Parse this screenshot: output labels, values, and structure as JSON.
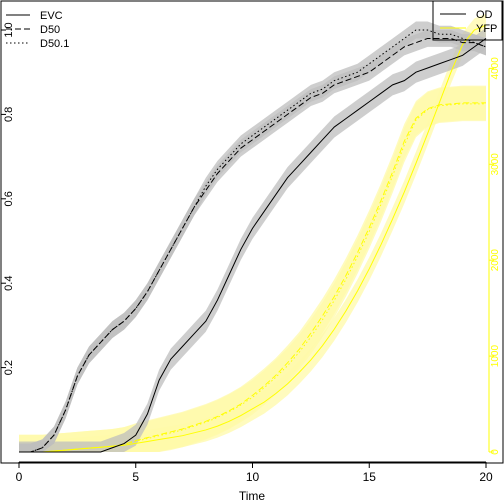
{
  "chart_data": {
    "type": "line",
    "title": "",
    "xlabel": "Time",
    "ylabel": "",
    "y2label": "",
    "xlim": [
      0,
      20
    ],
    "ylim": [
      0,
      1.0
    ],
    "y2lim": [
      0,
      4400
    ],
    "x_ticks": [
      0,
      5,
      10,
      15,
      20
    ],
    "y_ticks": [
      0.2,
      0.4,
      0.6,
      0.8,
      1.0
    ],
    "y2_ticks": [
      0,
      1000,
      2000,
      3000,
      4000
    ],
    "x": [
      0,
      0.5,
      1,
      1.5,
      2,
      2.5,
      3,
      3.5,
      4,
      4.5,
      5,
      5.5,
      6,
      6.5,
      7,
      7.5,
      8,
      8.5,
      9,
      9.5,
      10,
      10.5,
      11,
      11.5,
      12,
      12.5,
      13,
      13.5,
      14,
      14.5,
      15,
      15.5,
      16,
      16.5,
      17,
      17.5,
      18,
      18.5,
      19,
      19.5,
      20
    ],
    "od_series": [
      {
        "name": "EVC",
        "linetype": "solid",
        "axis": "left",
        "values": [
          0.0,
          0.0,
          0.0,
          0.0,
          0.0,
          0.0,
          0.0,
          0.0,
          0.01,
          0.02,
          0.04,
          0.09,
          0.17,
          0.22,
          0.25,
          0.28,
          0.31,
          0.36,
          0.42,
          0.48,
          0.53,
          0.57,
          0.61,
          0.65,
          0.68,
          0.71,
          0.74,
          0.77,
          0.79,
          0.81,
          0.83,
          0.85,
          0.87,
          0.88,
          0.9,
          0.91,
          0.92,
          0.93,
          0.94,
          0.96,
          0.98
        ],
        "band": 0.025
      },
      {
        "name": "D50",
        "linetype": "dashed",
        "axis": "left",
        "values": [
          0.0,
          0.0,
          0.01,
          0.04,
          0.1,
          0.18,
          0.23,
          0.26,
          0.29,
          0.31,
          0.34,
          0.38,
          0.43,
          0.48,
          0.53,
          0.58,
          0.62,
          0.66,
          0.69,
          0.72,
          0.74,
          0.76,
          0.78,
          0.8,
          0.82,
          0.84,
          0.85,
          0.87,
          0.88,
          0.89,
          0.9,
          0.92,
          0.94,
          0.96,
          0.97,
          0.98,
          0.98,
          0.98,
          0.97,
          0.97,
          0.96
        ],
        "band": 0.02
      },
      {
        "name": "D50.1",
        "linetype": "dotted",
        "axis": "left",
        "values": [
          0.0,
          0.0,
          0.01,
          0.04,
          0.1,
          0.18,
          0.23,
          0.26,
          0.29,
          0.31,
          0.34,
          0.38,
          0.43,
          0.48,
          0.53,
          0.58,
          0.63,
          0.67,
          0.7,
          0.73,
          0.75,
          0.77,
          0.79,
          0.81,
          0.83,
          0.85,
          0.86,
          0.88,
          0.89,
          0.9,
          0.92,
          0.94,
          0.96,
          0.98,
          1.0,
          1.0,
          0.99,
          0.99,
          0.98,
          0.97,
          0.96
        ],
        "band": 0.02
      }
    ],
    "yfp_series": [
      {
        "name": "EVC",
        "linetype": "solid",
        "axis": "right",
        "values": [
          0,
          0,
          0,
          10,
          20,
          30,
          40,
          50,
          60,
          70,
          90,
          110,
          130,
          150,
          170,
          200,
          230,
          270,
          320,
          380,
          450,
          520,
          610,
          710,
          830,
          960,
          1110,
          1280,
          1470,
          1680,
          1910,
          2160,
          2430,
          2710,
          3010,
          3320,
          3640,
          3960,
          4250,
          4400,
          4450
        ],
        "band": 120
      },
      {
        "name": "D50",
        "linetype": "dashed",
        "axis": "right",
        "values": [
          0,
          0,
          0,
          10,
          20,
          30,
          40,
          50,
          60,
          80,
          120,
          150,
          180,
          210,
          240,
          280,
          320,
          370,
          430,
          500,
          590,
          690,
          800,
          930,
          1070,
          1240,
          1420,
          1620,
          1840,
          2080,
          2340,
          2620,
          2920,
          3240,
          3480,
          3580,
          3620,
          3630,
          3640,
          3640,
          3640
        ],
        "band": 180
      },
      {
        "name": "D50.1",
        "linetype": "dotted",
        "axis": "right",
        "values": [
          0,
          0,
          0,
          10,
          20,
          30,
          40,
          50,
          60,
          80,
          110,
          140,
          170,
          200,
          230,
          270,
          310,
          360,
          420,
          490,
          570,
          670,
          780,
          900,
          1040,
          1200,
          1380,
          1580,
          1800,
          2040,
          2300,
          2580,
          2880,
          3200,
          3460,
          3570,
          3610,
          3620,
          3630,
          3630,
          3630
        ],
        "band": 180
      }
    ],
    "legend_left": {
      "placement": "top-left",
      "entries": [
        "EVC",
        "D50",
        "D50.1"
      ]
    },
    "legend_right": {
      "placement": "top-right",
      "entries": [
        "OD",
        "YFP"
      ]
    },
    "colors": {
      "od": "#000000",
      "od_band": "#bebebe",
      "yfp": "#ffff00",
      "yfp_band": "#fffaa8",
      "axis": "#000000"
    }
  }
}
